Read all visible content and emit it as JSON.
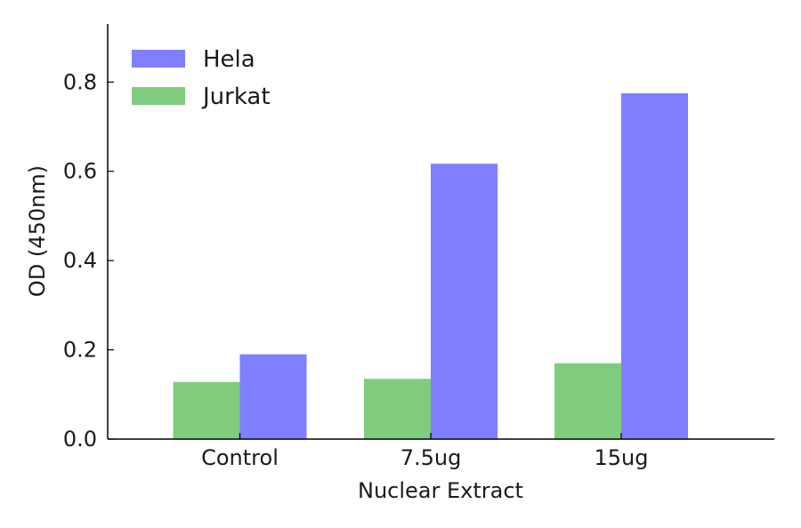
{
  "chart_data": {
    "type": "bar",
    "title": "",
    "xlabel": "Nuclear Extract",
    "ylabel": "OD (450nm)",
    "categories": [
      "Control",
      "7.5ug",
      "15ug"
    ],
    "series": [
      {
        "name": "Jurkat",
        "values": [
          0.128,
          0.135,
          0.17
        ],
        "color": "#7fcc7f"
      },
      {
        "name": "Hela",
        "values": [
          0.19,
          0.617,
          0.775
        ],
        "color": "#7f7fff"
      }
    ],
    "ylim": [
      0,
      0.93
    ],
    "yticks": [
      "0.0",
      "0.2",
      "0.4",
      "0.6",
      "0.8"
    ],
    "legend": {
      "position": "top-left",
      "entries": [
        {
          "label": "Hela",
          "color": "#7f7fff"
        },
        {
          "label": "Jurkat",
          "color": "#7fcc7f"
        }
      ]
    },
    "grid": false
  }
}
